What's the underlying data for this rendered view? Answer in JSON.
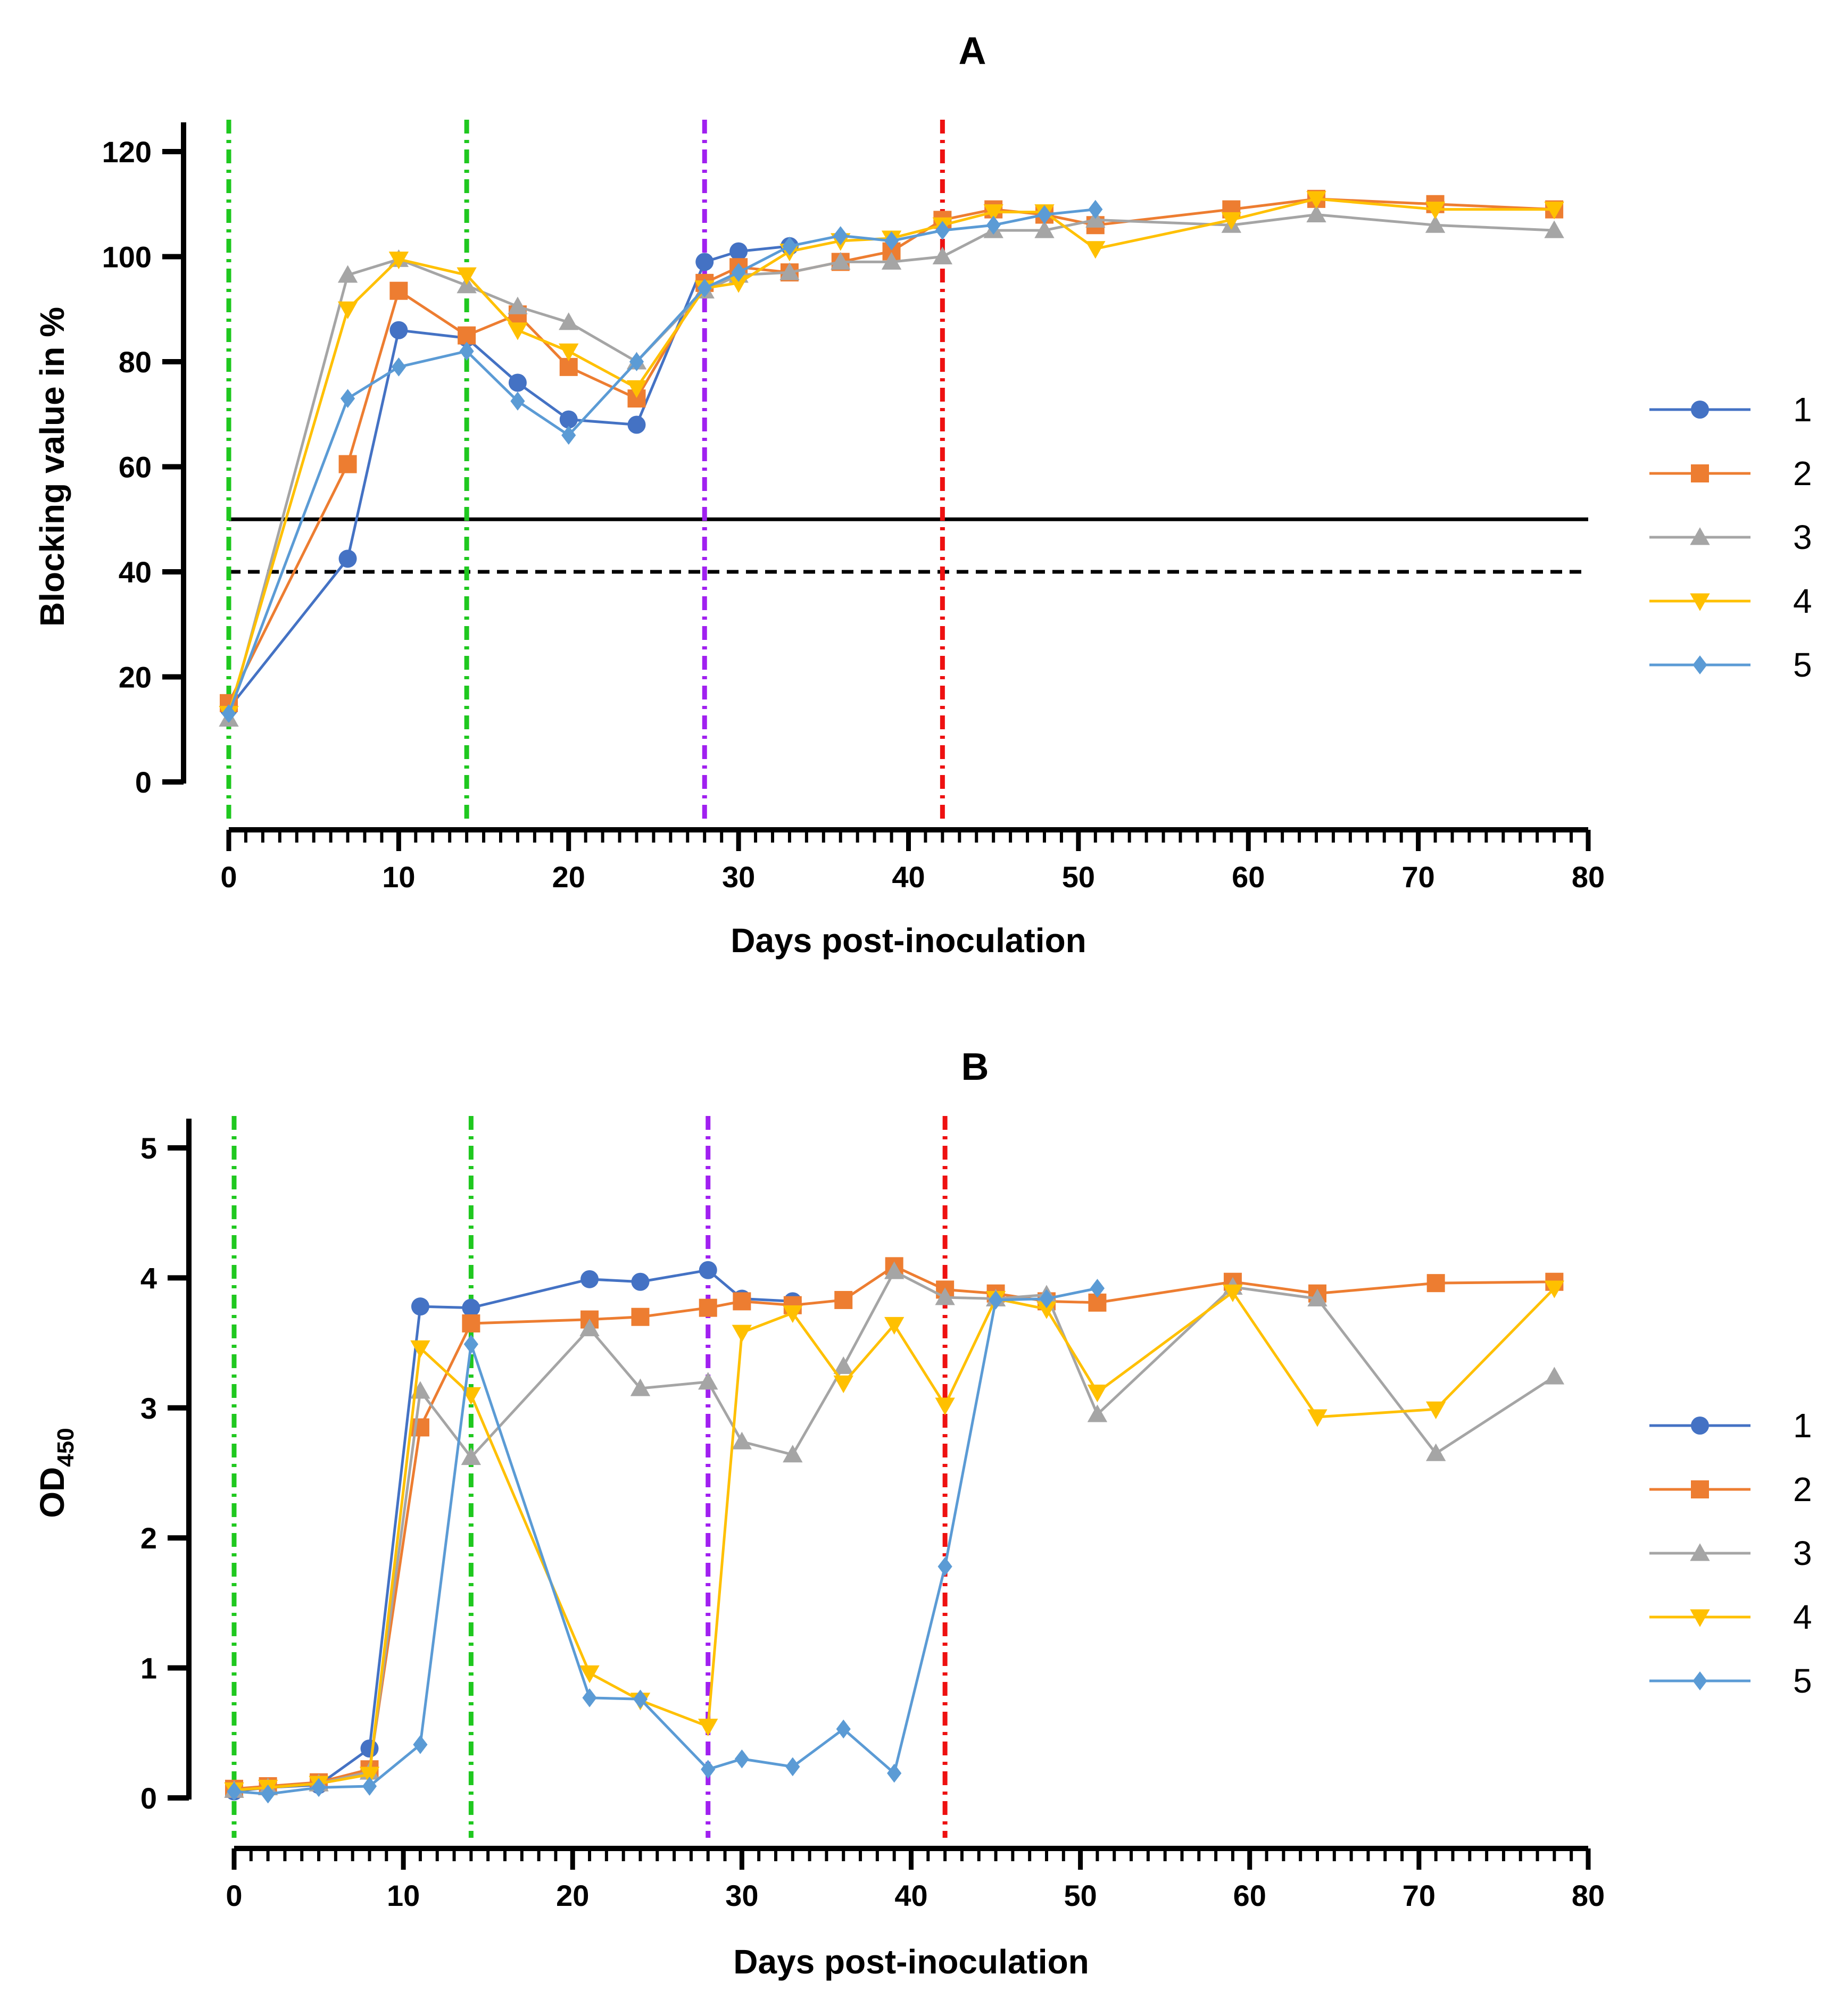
{
  "chart_data": [
    {
      "type": "line",
      "title": "A",
      "xlabel": "Days post-inoculation",
      "ylabel": "Blocking value in %",
      "xlim": [
        0,
        80
      ],
      "ylim": [
        0,
        120
      ],
      "xticks": [
        0,
        10,
        20,
        30,
        40,
        50,
        60,
        70,
        80
      ],
      "xtick_labels": [
        "0",
        "10",
        "20",
        "30",
        "40",
        "50",
        "60",
        "70",
        "80"
      ],
      "yticks": [
        0,
        20,
        40,
        60,
        80,
        100,
        120
      ],
      "ytick_labels": [
        "0",
        "20",
        "40",
        "60",
        "80",
        "100",
        "120"
      ],
      "reference_lines": [
        {
          "axis": "y",
          "value": 50,
          "style": "solid",
          "color": "#000000"
        },
        {
          "axis": "y",
          "value": 40,
          "style": "dashed",
          "color": "#000000"
        },
        {
          "axis": "x",
          "value": 0,
          "style": "dashdot",
          "color": "#1fc81f"
        },
        {
          "axis": "x",
          "value": 14,
          "style": "dashdot",
          "color": "#1fc81f"
        },
        {
          "axis": "x",
          "value": 28,
          "style": "dashdot",
          "color": "#a020f0"
        },
        {
          "axis": "x",
          "value": 42,
          "style": "dashdot",
          "color": "#ee1111"
        }
      ],
      "legend_position": "right",
      "series": [
        {
          "name": "1",
          "color": "#4472c4",
          "marker": "circle",
          "x": [
            0,
            7,
            10,
            14,
            17,
            20,
            24,
            28,
            30,
            33
          ],
          "y": [
            14,
            42.5,
            86,
            84.5,
            76,
            69,
            68,
            99,
            101,
            102
          ]
        },
        {
          "name": "2",
          "color": "#ed7d31",
          "marker": "square",
          "x": [
            0,
            7,
            10,
            14,
            17,
            20,
            24,
            28,
            30,
            33,
            36,
            39,
            42,
            45,
            48,
            51,
            59,
            64,
            71,
            78
          ],
          "y": [
            15,
            60.5,
            93.5,
            85,
            89,
            79,
            73,
            95,
            98,
            97,
            99,
            101,
            107,
            109,
            108,
            106,
            109,
            111,
            110,
            109
          ]
        },
        {
          "name": "3",
          "color": "#a5a5a5",
          "marker": "triangle-up",
          "x": [
            0,
            7,
            10,
            14,
            17,
            20,
            24,
            28,
            30,
            33,
            36,
            39,
            42,
            45,
            48,
            51,
            59,
            64,
            71,
            78
          ],
          "y": [
            12,
            96.5,
            99.5,
            94.5,
            90.5,
            87.5,
            80,
            93.5,
            96.5,
            97,
            99,
            99,
            100,
            105,
            105,
            107,
            106,
            108,
            106,
            105
          ]
        },
        {
          "name": "4",
          "color": "#ffc000",
          "marker": "triangle-down",
          "x": [
            0,
            7,
            10,
            14,
            17,
            20,
            24,
            28,
            30,
            33,
            36,
            39,
            42,
            45,
            48,
            51,
            59,
            64,
            71,
            78
          ],
          "y": [
            13,
            90,
            99.5,
            96.5,
            86,
            82,
            75,
            94,
            95,
            101,
            103,
            103.5,
            106,
            108.5,
            108.5,
            101.5,
            107,
            111,
            109,
            109
          ]
        },
        {
          "name": "5",
          "color": "#5b9bd5",
          "marker": "diamond",
          "x": [
            0,
            7,
            10,
            14,
            17,
            20,
            24,
            28,
            30,
            33,
            36,
            39,
            42,
            45,
            48,
            51
          ],
          "y": [
            13,
            73,
            79,
            82,
            72.5,
            66,
            80,
            94,
            97,
            102,
            104,
            103,
            105,
            106,
            108,
            109
          ]
        }
      ]
    },
    {
      "type": "line",
      "title": "B",
      "xlabel": "Days post-inoculation",
      "ylabel": "OD",
      "ylabel_subscript": "450",
      "xlim": [
        0,
        80
      ],
      "ylim": [
        0,
        5
      ],
      "xticks": [
        0,
        10,
        20,
        30,
        40,
        50,
        60,
        70,
        80
      ],
      "xtick_labels": [
        "0",
        "10",
        "20",
        "30",
        "40",
        "50",
        "60",
        "70",
        "80"
      ],
      "yticks": [
        0,
        1,
        2,
        3,
        4,
        5
      ],
      "ytick_labels": [
        "0",
        "1",
        "2",
        "3",
        "4",
        "5"
      ],
      "reference_lines": [
        {
          "axis": "x",
          "value": 0,
          "style": "dashdot",
          "color": "#1fc81f"
        },
        {
          "axis": "x",
          "value": 14,
          "style": "dashdot",
          "color": "#1fc81f"
        },
        {
          "axis": "x",
          "value": 28,
          "style": "dashdot",
          "color": "#a020f0"
        },
        {
          "axis": "x",
          "value": 42,
          "style": "dashdot",
          "color": "#ee1111"
        }
      ],
      "legend_position": "right",
      "series": [
        {
          "name": "1",
          "color": "#4472c4",
          "marker": "circle",
          "x": [
            0,
            2,
            5,
            8,
            11,
            14,
            21,
            24,
            28,
            30,
            33
          ],
          "y": [
            0.05,
            0.08,
            0.1,
            0.38,
            3.78,
            3.77,
            3.99,
            3.97,
            4.06,
            3.84,
            3.82
          ]
        },
        {
          "name": "2",
          "color": "#ed7d31",
          "marker": "square",
          "x": [
            0,
            2,
            5,
            8,
            11,
            14,
            21,
            24,
            28,
            30,
            33,
            36,
            39,
            42,
            45,
            48,
            51,
            59,
            64,
            71,
            78
          ],
          "y": [
            0.07,
            0.09,
            0.12,
            0.22,
            2.85,
            3.65,
            3.68,
            3.7,
            3.77,
            3.82,
            3.79,
            3.83,
            4.09,
            3.91,
            3.88,
            3.82,
            3.81,
            3.97,
            3.88,
            3.96,
            3.97
          ]
        },
        {
          "name": "3",
          "color": "#a5a5a5",
          "marker": "triangle-up",
          "x": [
            0,
            2,
            5,
            8,
            11,
            14,
            21,
            24,
            28,
            30,
            33,
            36,
            39,
            42,
            45,
            48,
            51,
            59,
            64,
            71,
            78
          ],
          "y": [
            0.06,
            0.08,
            0.11,
            0.2,
            3.13,
            2.62,
            3.61,
            3.15,
            3.2,
            2.74,
            2.64,
            3.32,
            4.05,
            3.85,
            3.84,
            3.87,
            2.95,
            3.93,
            3.84,
            2.65,
            3.24
          ]
        },
        {
          "name": "4",
          "color": "#ffc000",
          "marker": "triangle-down",
          "x": [
            0,
            2,
            5,
            8,
            11,
            14,
            21,
            24,
            28,
            30,
            33,
            36,
            39,
            42,
            45,
            48,
            51,
            59,
            64,
            71,
            78
          ],
          "y": [
            0.06,
            0.08,
            0.11,
            0.18,
            3.46,
            3.1,
            0.96,
            0.75,
            0.55,
            3.58,
            3.73,
            3.19,
            3.64,
            3.02,
            3.84,
            3.76,
            3.12,
            3.89,
            2.93,
            2.99,
            3.92
          ]
        },
        {
          "name": "5",
          "color": "#5b9bd5",
          "marker": "diamond",
          "x": [
            0,
            2,
            5,
            8,
            11,
            14,
            21,
            24,
            28,
            30,
            33,
            36,
            39,
            42,
            45,
            48,
            51
          ],
          "y": [
            0.05,
            0.03,
            0.08,
            0.09,
            0.41,
            3.49,
            0.77,
            0.76,
            0.22,
            0.3,
            0.24,
            0.53,
            0.19,
            1.78,
            3.83,
            3.84,
            3.92
          ]
        }
      ]
    }
  ]
}
